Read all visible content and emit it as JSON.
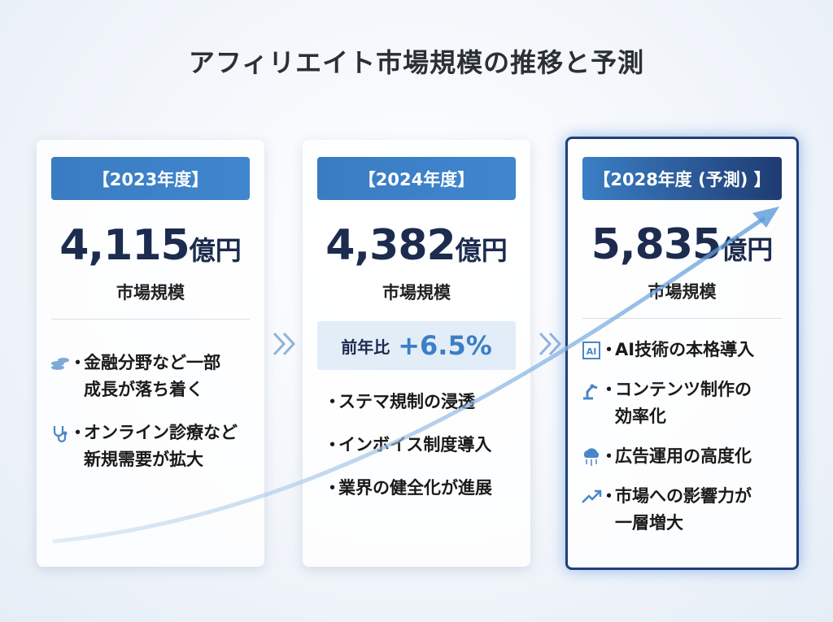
{
  "title": "アフィリエイト市場規模の推移と予測",
  "cards": [
    {
      "label": "【2023年度】",
      "value": "4,115",
      "unit": "億円",
      "caption": "市場規模",
      "bullets": [
        {
          "lines": [
            "金融分野など一部",
            "成長が落ち着く"
          ]
        },
        {
          "lines": [
            "オンライン診療など",
            "新規需要が拡大"
          ]
        }
      ]
    },
    {
      "label": "【2024年度】",
      "value": "4,382",
      "unit": "億円",
      "caption": "市場規模",
      "yoy": {
        "label": "前年比",
        "value": "+6.5%"
      },
      "bullets": [
        {
          "lines": [
            "ステマ規制の浸透"
          ]
        },
        {
          "lines": [
            "インボイス制度導入"
          ]
        },
        {
          "lines": [
            "業界の健全化が進展"
          ]
        }
      ]
    },
    {
      "label": "【2028年度 (予測) 】",
      "value": "5,835",
      "unit": "億円",
      "caption": "市場規模",
      "bullets": [
        {
          "icon_text": "AI",
          "lines": [
            "AI技術の本格導入"
          ]
        },
        {
          "lines": [
            "コンテンツ制作の",
            "効率化"
          ]
        },
        {
          "lines": [
            "広告運用の高度化"
          ]
        },
        {
          "lines": [
            "市場への影響力が",
            "一層増大"
          ]
        }
      ]
    }
  ]
}
